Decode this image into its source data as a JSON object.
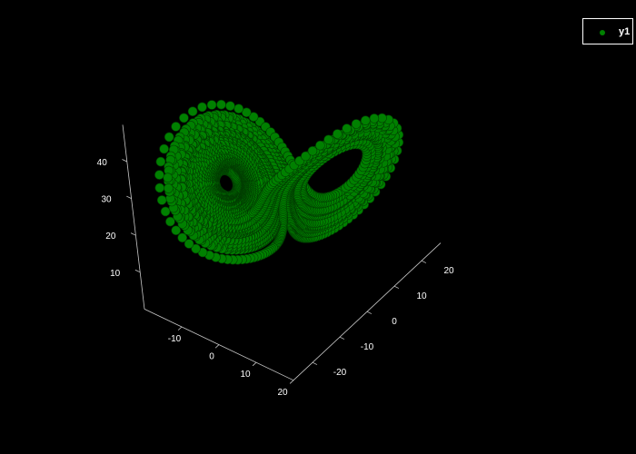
{
  "chart_data": {
    "type": "scatter",
    "subtype": "3d-scatter",
    "title": "",
    "background": "#000000",
    "axis_color": "#c8c8c8",
    "series": [
      {
        "name": "y1",
        "color": "#008000",
        "marker": "circle",
        "description": "Lorenz attractor trajectory"
      }
    ],
    "axes": {
      "x": {
        "label": "",
        "ticks": [
          "-10",
          "0",
          "10",
          "20"
        ],
        "range": [
          -20,
          20
        ]
      },
      "y": {
        "label": "",
        "ticks": [
          "-20",
          "-10",
          "0",
          "10",
          "20"
        ],
        "range": [
          -27,
          27
        ]
      },
      "z": {
        "label": "",
        "ticks": [
          "10",
          "20",
          "30",
          "40"
        ],
        "range": [
          0,
          50
        ]
      }
    },
    "lorenz": {
      "sigma": 10,
      "rho": 28,
      "beta": 2.6666667
    },
    "legend": {
      "position": "top-right",
      "entries": [
        "y1"
      ]
    }
  }
}
